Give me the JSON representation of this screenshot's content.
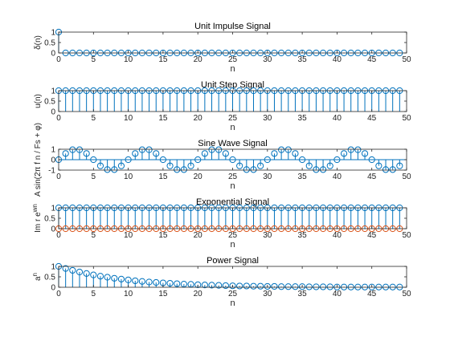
{
  "figure": {
    "background": "#ffffff",
    "colors": {
      "stem": "#0072bd",
      "stem_red": "#d95319",
      "axis": "#262626"
    }
  },
  "chart_data": [
    {
      "type": "stem",
      "title": "Unit Impulse Signal",
      "xlabel": "n",
      "ylabel": "δ(n)",
      "xlim": [
        0,
        50
      ],
      "ylim": [
        0,
        1
      ],
      "xticks": [
        0,
        5,
        10,
        15,
        20,
        25,
        30,
        35,
        40,
        45,
        50
      ],
      "yticks": [
        0,
        0.5,
        1
      ],
      "ytick_labels": [
        "0",
        "0.5",
        "1"
      ],
      "series": [
        {
          "values": [
            1,
            0,
            0,
            0,
            0,
            0,
            0,
            0,
            0,
            0,
            0,
            0,
            0,
            0,
            0,
            0,
            0,
            0,
            0,
            0,
            0,
            0,
            0,
            0,
            0,
            0,
            0,
            0,
            0,
            0,
            0,
            0,
            0,
            0,
            0,
            0,
            0,
            0,
            0,
            0,
            0,
            0,
            0,
            0,
            0,
            0,
            0,
            0,
            0,
            0
          ],
          "color": "#0072bd"
        }
      ]
    },
    {
      "type": "stem",
      "title": "Unit Step Signal",
      "xlabel": "n",
      "ylabel": "u(n)",
      "xlim": [
        0,
        50
      ],
      "ylim": [
        0,
        1
      ],
      "xticks": [
        0,
        5,
        10,
        15,
        20,
        25,
        30,
        35,
        40,
        45,
        50
      ],
      "yticks": [
        0,
        0.5,
        1
      ],
      "ytick_labels": [
        "0",
        "0.5",
        "1"
      ],
      "series": [
        {
          "values": [
            1,
            1,
            1,
            1,
            1,
            1,
            1,
            1,
            1,
            1,
            1,
            1,
            1,
            1,
            1,
            1,
            1,
            1,
            1,
            1,
            1,
            1,
            1,
            1,
            1,
            1,
            1,
            1,
            1,
            1,
            1,
            1,
            1,
            1,
            1,
            1,
            1,
            1,
            1,
            1,
            1,
            1,
            1,
            1,
            1,
            1,
            1,
            1,
            1,
            1
          ],
          "color": "#0072bd"
        }
      ]
    },
    {
      "type": "stem",
      "title": "Sine Wave Signal",
      "xlabel": "n",
      "ylabel": "A sin(2π f n / Fs + φ)",
      "xlim": [
        0,
        50
      ],
      "ylim": [
        -1,
        1
      ],
      "xticks": [
        0,
        5,
        10,
        15,
        20,
        25,
        30,
        35,
        40,
        45,
        50
      ],
      "yticks": [
        -1,
        0,
        1
      ],
      "ytick_labels": [
        "-1",
        "0",
        "1"
      ],
      "series": [
        {
          "values": [
            0,
            0.59,
            0.95,
            0.95,
            0.59,
            0,
            -0.59,
            -0.95,
            -0.95,
            -0.59,
            0,
            0.59,
            0.95,
            0.95,
            0.59,
            0,
            -0.59,
            -0.95,
            -0.95,
            -0.59,
            0,
            0.59,
            0.95,
            0.95,
            0.59,
            0,
            -0.59,
            -0.95,
            -0.95,
            -0.59,
            0,
            0.59,
            0.95,
            0.95,
            0.59,
            0,
            -0.59,
            -0.95,
            -0.95,
            -0.59,
            0,
            0.59,
            0.95,
            0.95,
            0.59,
            0,
            -0.59,
            -0.95,
            -0.95,
            -0.59
          ],
          "color": "#0072bd"
        }
      ]
    },
    {
      "type": "stem",
      "title": "Exponential Signal",
      "xlabel": "n",
      "ylabel": "Im r e^{wn}",
      "xlim": [
        0,
        50
      ],
      "ylim": [
        0,
        1
      ],
      "xticks": [
        0,
        5,
        10,
        15,
        20,
        25,
        30,
        35,
        40,
        45,
        50
      ],
      "yticks": [
        0,
        0.5,
        1
      ],
      "ytick_labels": [
        "0",
        "0.5",
        "1"
      ],
      "series": [
        {
          "values": [
            1,
            1,
            1,
            1,
            1,
            1,
            1,
            1,
            1,
            1,
            1,
            1,
            1,
            1,
            1,
            1,
            1,
            1,
            1,
            1,
            1,
            1,
            1,
            1,
            1,
            1,
            1,
            1,
            1,
            1,
            1,
            1,
            1,
            1,
            1,
            1,
            1,
            1,
            1,
            1,
            1,
            1,
            1,
            1,
            1,
            1,
            1,
            1,
            1,
            1
          ],
          "color": "#0072bd"
        },
        {
          "values": [
            0,
            0,
            0,
            0,
            0,
            0,
            0,
            0,
            0,
            0,
            0,
            0,
            0,
            0,
            0,
            0,
            0,
            0,
            0,
            0,
            0,
            0,
            0,
            0,
            0,
            0,
            0,
            0,
            0,
            0,
            0,
            0,
            0,
            0,
            0,
            0,
            0,
            0,
            0,
            0,
            0,
            0,
            0,
            0,
            0,
            0,
            0,
            0,
            0,
            0
          ],
          "color": "#d95319"
        }
      ]
    },
    {
      "type": "stem",
      "title": "Power Signal",
      "xlabel": "n",
      "ylabel": "a^n",
      "xlim": [
        0,
        50
      ],
      "ylim": [
        0,
        1
      ],
      "xticks": [
        0,
        5,
        10,
        15,
        20,
        25,
        30,
        35,
        40,
        45,
        50
      ],
      "yticks": [
        0,
        0.5,
        1
      ],
      "ytick_labels": [
        "0",
        "0.5",
        "1"
      ],
      "series": [
        {
          "values": [
            1,
            0.9,
            0.81,
            0.73,
            0.66,
            0.59,
            0.53,
            0.48,
            0.43,
            0.39,
            0.35,
            0.31,
            0.28,
            0.25,
            0.23,
            0.21,
            0.19,
            0.17,
            0.15,
            0.14,
            0.12,
            0.11,
            0.1,
            0.09,
            0.08,
            0.07,
            0.06,
            0.06,
            0.05,
            0.05,
            0.04,
            0.04,
            0.03,
            0.03,
            0.03,
            0.03,
            0.02,
            0.02,
            0.02,
            0.02,
            0.01,
            0.01,
            0.01,
            0.01,
            0.01,
            0.01,
            0.01,
            0.01,
            0.01,
            0.01
          ],
          "color": "#0072bd"
        }
      ]
    }
  ]
}
